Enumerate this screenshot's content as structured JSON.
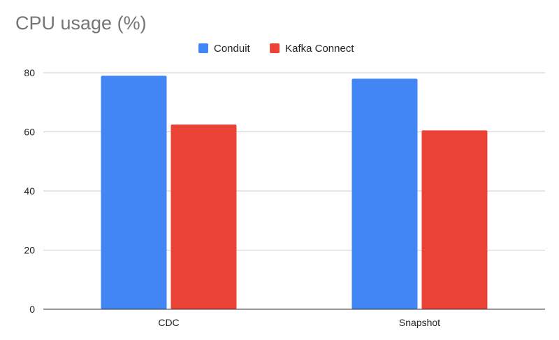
{
  "chart_data": {
    "type": "bar",
    "title": "CPU usage (%)",
    "xlabel": "",
    "ylabel": "",
    "categories": [
      "CDC",
      "Snapshot"
    ],
    "series": [
      {
        "name": "Conduit",
        "values": [
          79,
          78
        ],
        "color": "#4285F4"
      },
      {
        "name": "Kafka Connect",
        "values": [
          62.5,
          60.5
        ],
        "color": "#EA4335"
      }
    ],
    "ylim": [
      0,
      80
    ],
    "yticks": [
      0,
      20,
      40,
      60,
      80
    ],
    "grid": true,
    "legend_position": "top-center"
  }
}
